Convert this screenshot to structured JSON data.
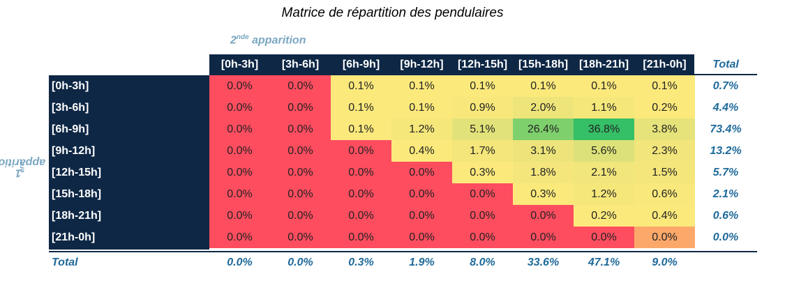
{
  "title": "Matrice de répartition des pendulaires",
  "col_axis_label": {
    "base": "2",
    "sup": "nde",
    "rest": " apparition"
  },
  "row_axis_label": {
    "base": "1",
    "sup": "ère",
    "rest": " apparition"
  },
  "total_label": "Total",
  "colors": {
    "header_bg": "#0e2745",
    "total_text": "#1f6a9a",
    "axis_label": "#7aa7c2"
  },
  "chart_data": {
    "type": "heatmap",
    "title": "Matrice de répartition des pendulaires",
    "xlabel": "2nde apparition",
    "ylabel": "1ère apparition",
    "columns": [
      "[0h-3h]",
      "[3h-6h]",
      "[6h-9h]",
      "[9h-12h]",
      "[12h-15h]",
      "[15h-18h]",
      "[18h-21h]",
      "[21h-0h]"
    ],
    "rows": [
      "[0h-3h]",
      "[3h-6h]",
      "[6h-9h]",
      "[9h-12h]",
      "[12h-15h]",
      "[15h-18h]",
      "[18h-21h]",
      "[21h-0h]"
    ],
    "values": [
      [
        "0.0%",
        "0.0%",
        "0.1%",
        "0.1%",
        "0.1%",
        "0.1%",
        "0.1%",
        "0.1%"
      ],
      [
        "0.0%",
        "0.0%",
        "0.1%",
        "0.1%",
        "0.9%",
        "2.0%",
        "1.1%",
        "0.2%"
      ],
      [
        "0.0%",
        "0.0%",
        "0.1%",
        "1.2%",
        "5.1%",
        "26.4%",
        "36.8%",
        "3.8%"
      ],
      [
        "0.0%",
        "0.0%",
        "0.0%",
        "0.4%",
        "1.7%",
        "3.1%",
        "5.6%",
        "2.3%"
      ],
      [
        "0.0%",
        "0.0%",
        "0.0%",
        "0.0%",
        "0.3%",
        "1.8%",
        "2.1%",
        "1.5%"
      ],
      [
        "0.0%",
        "0.0%",
        "0.0%",
        "0.0%",
        "0.0%",
        "0.3%",
        "1.2%",
        "0.6%"
      ],
      [
        "0.0%",
        "0.0%",
        "0.0%",
        "0.0%",
        "0.0%",
        "0.0%",
        "0.2%",
        "0.4%"
      ],
      [
        "0.0%",
        "0.0%",
        "0.0%",
        "0.0%",
        "0.0%",
        "0.0%",
        "0.0%",
        "0.0%"
      ]
    ],
    "row_totals": [
      "0.7%",
      "4.4%",
      "73.4%",
      "13.2%",
      "5.7%",
      "2.1%",
      "0.6%",
      "0.0%"
    ],
    "col_totals": [
      "0.0%",
      "0.0%",
      "0.3%",
      "1.9%",
      "8.0%",
      "33.6%",
      "47.1%",
      "9.0%"
    ],
    "cell_colors": [
      [
        "#fe4d5f",
        "#fe4d5f",
        "#fbe97c",
        "#fbe97c",
        "#fbe97c",
        "#fbe97c",
        "#fbe97c",
        "#fbe97c"
      ],
      [
        "#fe4d5f",
        "#fe4d5f",
        "#fbe97c",
        "#fbe97c",
        "#f8e87b",
        "#eee57a",
        "#f6e77b",
        "#fbe97c"
      ],
      [
        "#fe4d5f",
        "#fe4d5f",
        "#fbe97c",
        "#f6e77b",
        "#e2e27a",
        "#7ed06d",
        "#35bf66",
        "#e5e37a"
      ],
      [
        "#fe4d5f",
        "#fe4d5f",
        "#fe4d5f",
        "#fbe97c",
        "#f4e67b",
        "#ece47a",
        "#dce17a",
        "#f1e57b"
      ],
      [
        "#fe4d5f",
        "#fe4d5f",
        "#fe4d5f",
        "#fe4d5f",
        "#fbe97c",
        "#f4e67b",
        "#f1e67b",
        "#f5e67b"
      ],
      [
        "#fe4d5f",
        "#fe4d5f",
        "#fe4d5f",
        "#fe4d5f",
        "#fe4d5f",
        "#fbe97c",
        "#f6e77b",
        "#f9e87c"
      ],
      [
        "#fe4d5f",
        "#fe4d5f",
        "#fe4d5f",
        "#fe4d5f",
        "#fe4d5f",
        "#fe4d5f",
        "#fbe97c",
        "#fbe97c"
      ],
      [
        "#fe4d5f",
        "#fe4d5f",
        "#fe4d5f",
        "#fe4d5f",
        "#fe4d5f",
        "#fe4d5f",
        "#fe4d5f",
        "#fca86a"
      ]
    ]
  }
}
